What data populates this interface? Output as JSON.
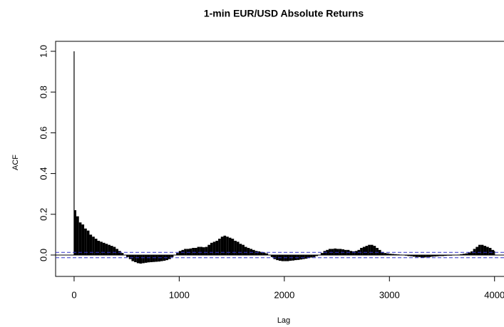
{
  "chart_data": {
    "type": "acf",
    "title": "1-min EUR/USD Absolute Returns",
    "xlabel": "Lag",
    "ylabel": "ACF",
    "x": [
      0,
      1,
      25,
      50,
      75,
      100,
      125,
      150,
      175,
      200,
      225,
      250,
      275,
      300,
      325,
      350,
      375,
      400,
      425,
      450,
      475,
      500,
      525,
      550,
      575,
      600,
      625,
      650,
      675,
      700,
      725,
      750,
      775,
      800,
      825,
      850,
      875,
      900,
      925,
      950,
      975,
      1000,
      1025,
      1050,
      1075,
      1100,
      1125,
      1150,
      1175,
      1200,
      1225,
      1250,
      1275,
      1300,
      1325,
      1350,
      1375,
      1400,
      1425,
      1450,
      1475,
      1500,
      1525,
      1550,
      1575,
      1600,
      1625,
      1650,
      1675,
      1700,
      1725,
      1750,
      1775,
      1800,
      1825,
      1850,
      1875,
      1900,
      1925,
      1950,
      1975,
      2000,
      2025,
      2050,
      2075,
      2100,
      2125,
      2150,
      2175,
      2200,
      2225,
      2250,
      2275,
      2300,
      2325,
      2350,
      2375,
      2400,
      2425,
      2450,
      2475,
      2500,
      2525,
      2550,
      2575,
      2600,
      2625,
      2650,
      2675,
      2700,
      2725,
      2750,
      2775,
      2800,
      2825,
      2850,
      2875,
      2900,
      2925,
      2950,
      2975,
      3000,
      3025,
      3050,
      3075,
      3100,
      3125,
      3150,
      3175,
      3200,
      3225,
      3250,
      3275,
      3300,
      3325,
      3350,
      3375,
      3400,
      3425,
      3450,
      3475,
      3500,
      3525,
      3550,
      3575,
      3600,
      3625,
      3650,
      3675,
      3700,
      3725,
      3750,
      3775,
      3800,
      3825,
      3850,
      3875,
      3900,
      3925,
      3950,
      3975,
      4000
    ],
    "values": [
      1.0,
      0.22,
      0.19,
      0.16,
      0.15,
      0.13,
      0.12,
      0.1,
      0.09,
      0.08,
      0.07,
      0.065,
      0.06,
      0.055,
      0.05,
      0.045,
      0.04,
      0.03,
      0.02,
      0.01,
      0.0,
      -0.01,
      -0.02,
      -0.03,
      -0.035,
      -0.04,
      -0.042,
      -0.04,
      -0.038,
      -0.036,
      -0.035,
      -0.034,
      -0.033,
      -0.032,
      -0.03,
      -0.028,
      -0.025,
      -0.02,
      -0.01,
      0.0,
      0.01,
      0.02,
      0.025,
      0.03,
      0.03,
      0.032,
      0.035,
      0.035,
      0.04,
      0.04,
      0.038,
      0.04,
      0.05,
      0.06,
      0.065,
      0.07,
      0.08,
      0.09,
      0.095,
      0.09,
      0.085,
      0.08,
      0.07,
      0.065,
      0.055,
      0.05,
      0.04,
      0.035,
      0.03,
      0.025,
      0.02,
      0.018,
      0.015,
      0.012,
      0.008,
      0.0,
      -0.01,
      -0.02,
      -0.025,
      -0.028,
      -0.03,
      -0.03,
      -0.03,
      -0.028,
      -0.027,
      -0.025,
      -0.024,
      -0.022,
      -0.02,
      -0.018,
      -0.015,
      -0.012,
      -0.01,
      -0.005,
      0.0,
      0.01,
      0.02,
      0.025,
      0.03,
      0.03,
      0.032,
      0.03,
      0.03,
      0.028,
      0.025,
      0.025,
      0.02,
      0.018,
      0.02,
      0.025,
      0.035,
      0.04,
      0.045,
      0.05,
      0.05,
      0.045,
      0.035,
      0.025,
      0.015,
      0.01,
      0.008,
      0.006,
      0.005,
      0.004,
      0.003,
      0.002,
      0.0,
      -0.003,
      -0.005,
      -0.006,
      -0.008,
      -0.01,
      -0.01,
      -0.012,
      -0.012,
      -0.01,
      -0.01,
      -0.008,
      -0.007,
      -0.006,
      -0.005,
      -0.005,
      -0.004,
      -0.003,
      -0.003,
      -0.002,
      0.0,
      0.002,
      0.004,
      0.006,
      0.008,
      0.012,
      0.018,
      0.03,
      0.04,
      0.05,
      0.05,
      0.045,
      0.04,
      0.035,
      0.025,
      0.02
    ],
    "color": "#000000",
    "ci": 0.013,
    "ci_color": "#3333cc",
    "xlim": [
      -176,
      4090
    ],
    "xticks": [
      0,
      1000,
      2000,
      3000,
      4000
    ],
    "ylim": [
      -0.105,
      1.049
    ],
    "yticks": [
      {
        "value": 0,
        "label": "0.0"
      },
      {
        "value": 0.2,
        "label": "0.2"
      },
      {
        "value": 0.4,
        "label": "0.4"
      },
      {
        "value": 0.6,
        "label": "0.6"
      },
      {
        "value": 0.8,
        "label": "0.8"
      },
      {
        "value": 1.0,
        "label": "1.0"
      }
    ]
  }
}
